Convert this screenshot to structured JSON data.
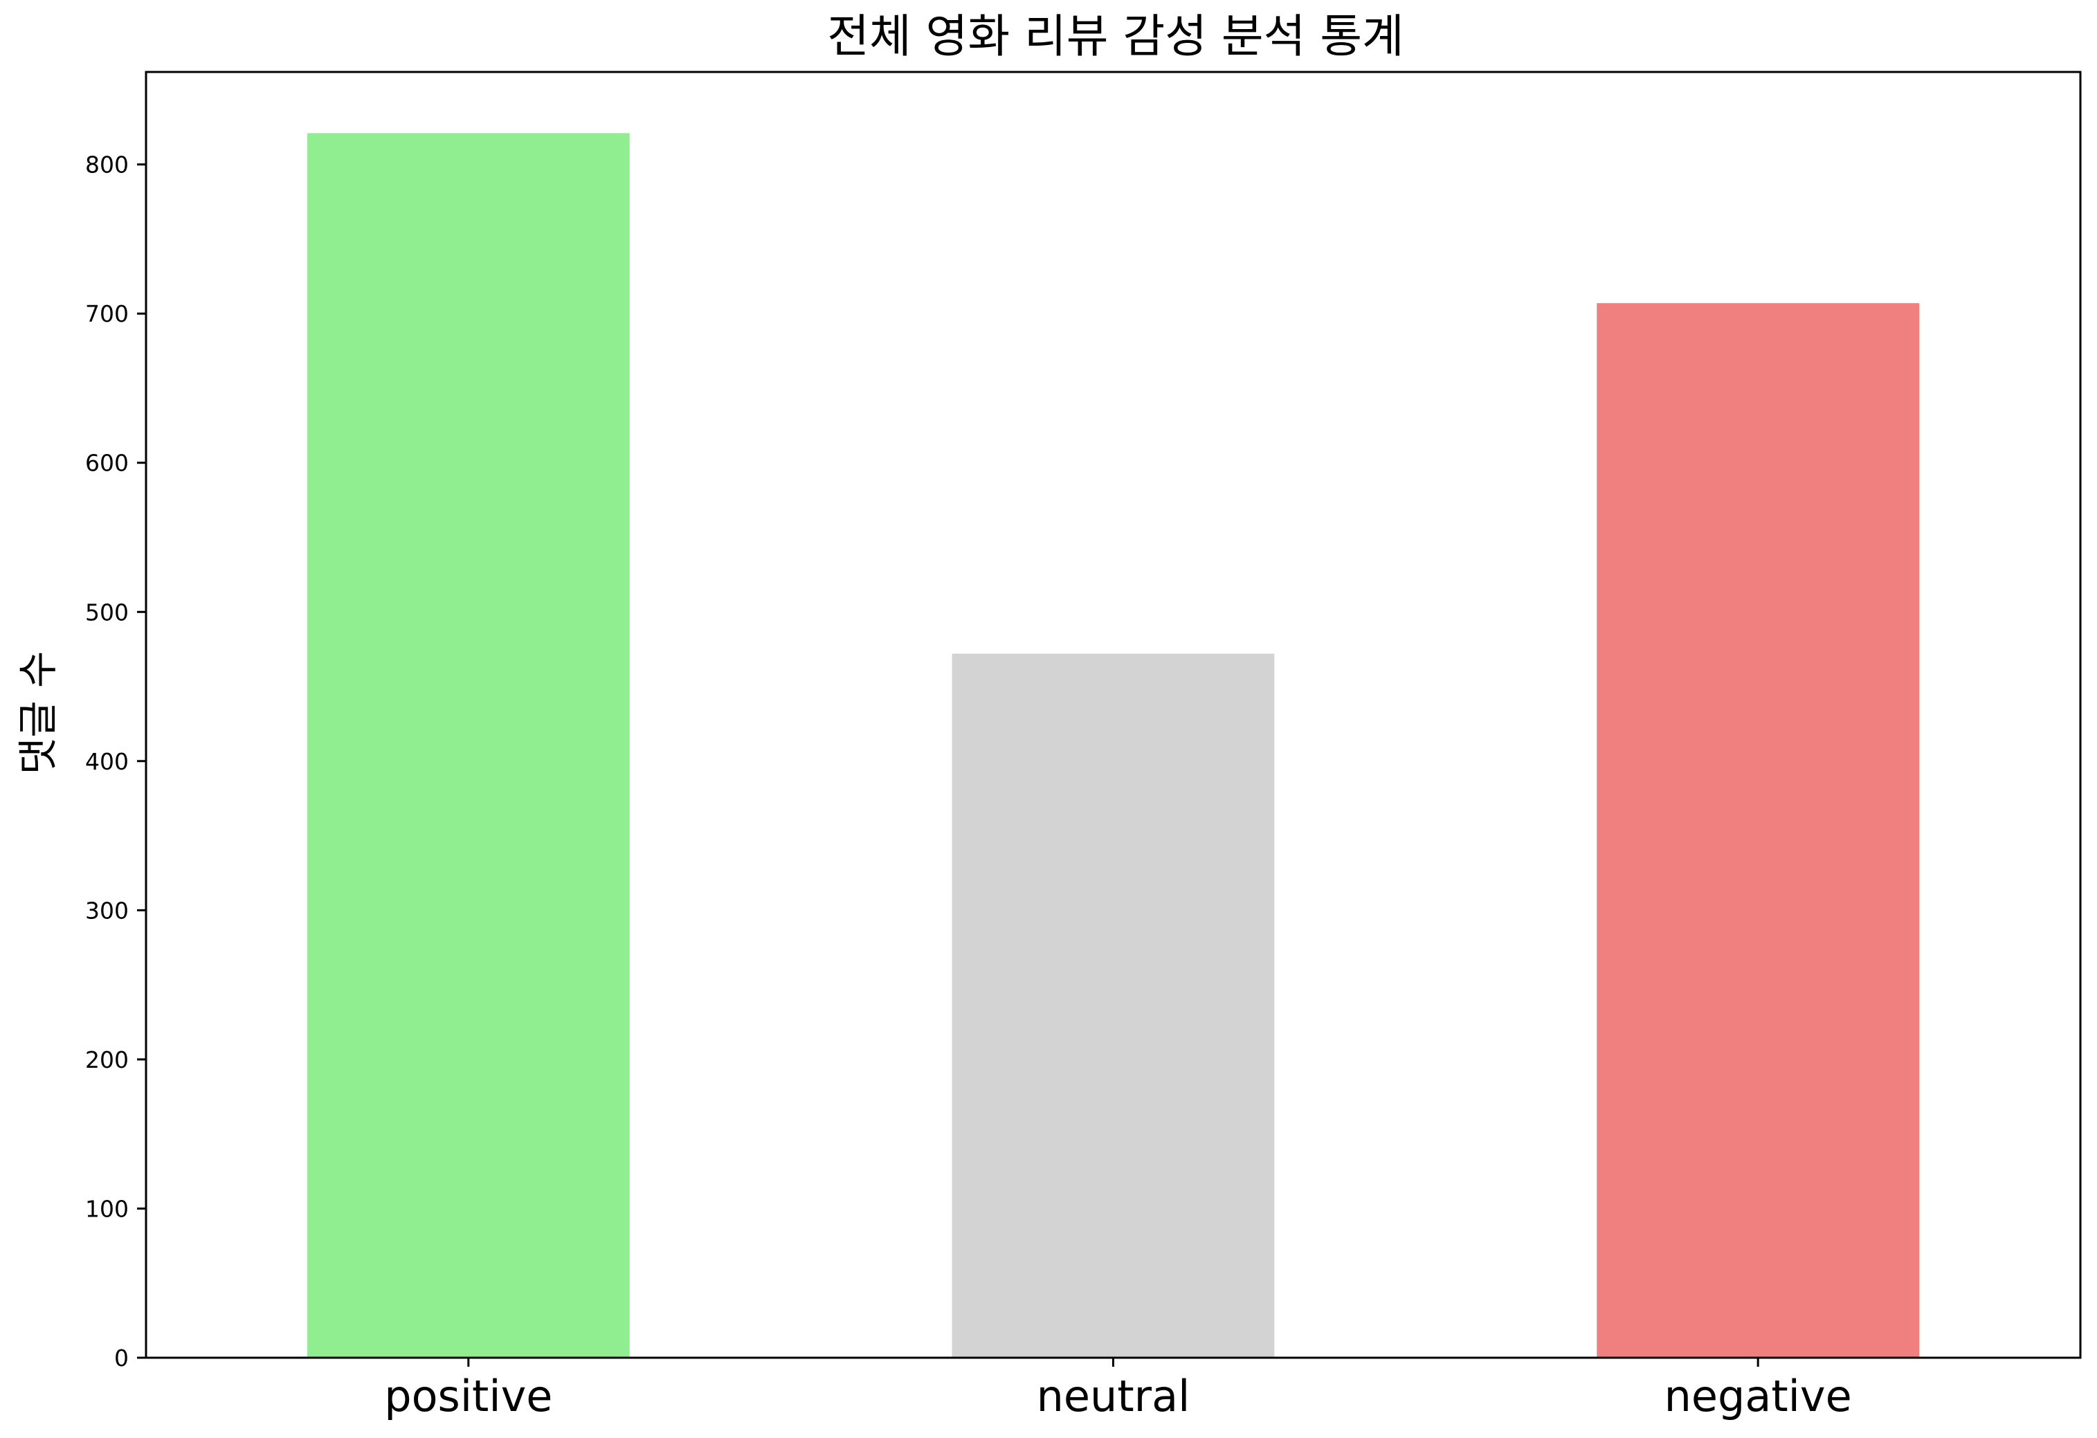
{
  "chart_data": {
    "type": "bar",
    "title": "전체 영화 리뷰 감성 분석 통계",
    "xlabel": "",
    "ylabel": "댓글 수",
    "categories": [
      "positive",
      "neutral",
      "negative"
    ],
    "values": [
      821,
      472,
      707
    ],
    "colors": [
      "#90ee90",
      "#d3d3d3",
      "#f08080"
    ],
    "ylim": [
      0,
      862
    ],
    "yticks": [
      0,
      100,
      200,
      300,
      400,
      500,
      600,
      700,
      800
    ],
    "grid": false,
    "legend": "none"
  }
}
